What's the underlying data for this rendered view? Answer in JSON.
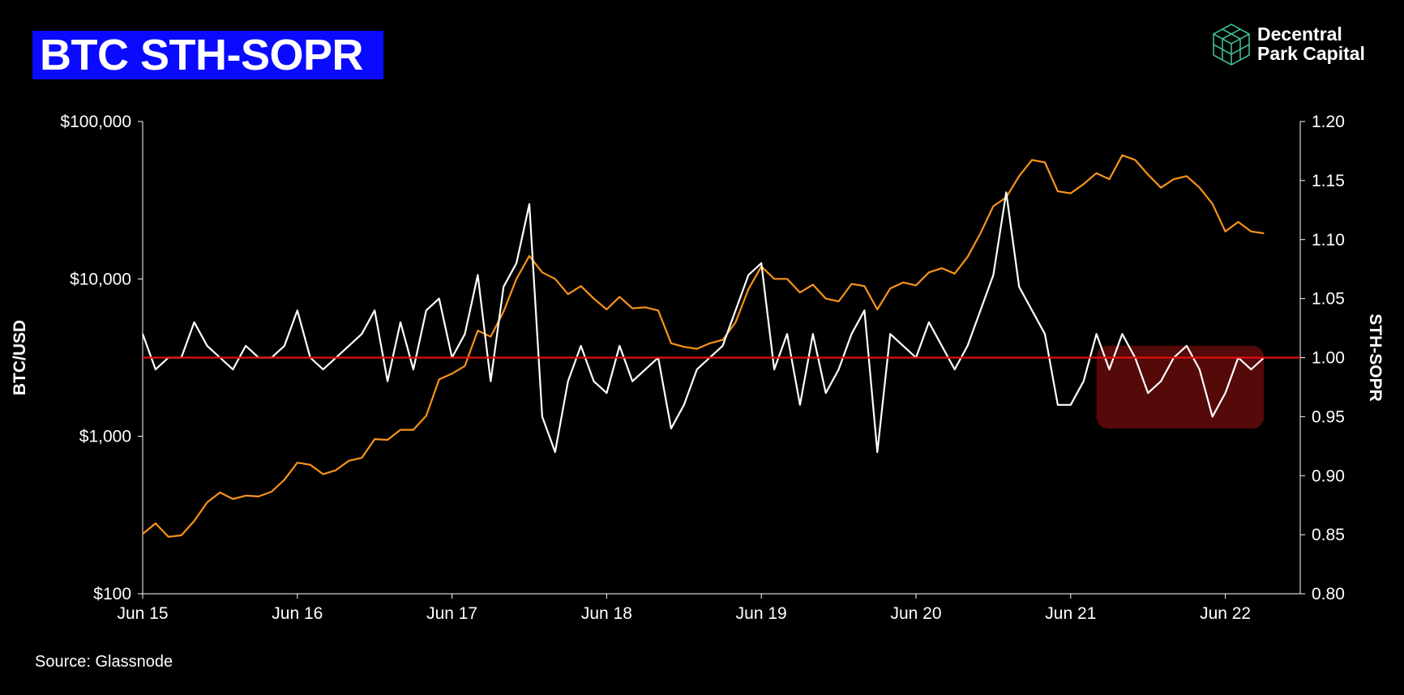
{
  "header": {
    "title": "BTC STH-SOPR",
    "logo_line1": "Decentral",
    "logo_line2": "Park Capital"
  },
  "footer": {
    "source": "Source: Glassnode"
  },
  "colors": {
    "title_bg": "#0a0aff",
    "btc_price": "#f7931a",
    "sopr": "#ffffff",
    "baseline": "#e01010",
    "highlight": "#5a0a0a",
    "logo": "#3fbf8f"
  },
  "chart_data": {
    "type": "line",
    "title": "BTC STH-SOPR",
    "x_tick_labels": [
      "Jun 15",
      "Jun 16",
      "Jun 17",
      "Jun 18",
      "Jun 19",
      "Jun 20",
      "Jun 21",
      "Jun 22"
    ],
    "x_range": [
      "2015-06",
      "2022-09"
    ],
    "left_axis": {
      "label": "BTC/USD",
      "scale": "log",
      "range": [
        100,
        100000
      ],
      "tick_labels": [
        "$100,000",
        "$10,000",
        "$1,000",
        "$100"
      ],
      "tick_values": [
        100000,
        10000,
        1000,
        100
      ]
    },
    "right_axis": {
      "label": "STH-SOPR",
      "scale": "linear",
      "range": [
        0.8,
        1.2
      ],
      "tick_labels": [
        "1.20",
        "1.15",
        "1.10",
        "1.05",
        "1.00",
        "0.95",
        "0.90",
        "0.85",
        "0.80"
      ],
      "tick_values": [
        1.2,
        1.15,
        1.1,
        1.05,
        1.0,
        0.95,
        0.9,
        0.85,
        0.8
      ]
    },
    "reference_line": {
      "axis": "right",
      "value": 1.0
    },
    "highlight_region": {
      "x_start": "2021-08",
      "x_end": "2022-09",
      "y_from": 0.94,
      "y_to": 1.01
    },
    "series": [
      {
        "name": "BTC price",
        "axis": "left",
        "x": [
          "2015-06",
          "2015-07",
          "2015-08",
          "2015-09",
          "2015-10",
          "2015-11",
          "2015-12",
          "2016-01",
          "2016-02",
          "2016-03",
          "2016-04",
          "2016-05",
          "2016-06",
          "2016-07",
          "2016-08",
          "2016-09",
          "2016-10",
          "2016-11",
          "2016-12",
          "2017-01",
          "2017-02",
          "2017-03",
          "2017-04",
          "2017-05",
          "2017-06",
          "2017-07",
          "2017-08",
          "2017-09",
          "2017-10",
          "2017-11",
          "2017-12",
          "2018-01",
          "2018-02",
          "2018-03",
          "2018-04",
          "2018-05",
          "2018-06",
          "2018-07",
          "2018-08",
          "2018-09",
          "2018-10",
          "2018-11",
          "2018-12",
          "2019-01",
          "2019-02",
          "2019-03",
          "2019-04",
          "2019-05",
          "2019-06",
          "2019-07",
          "2019-08",
          "2019-09",
          "2019-10",
          "2019-11",
          "2019-12",
          "2020-01",
          "2020-02",
          "2020-03",
          "2020-04",
          "2020-05",
          "2020-06",
          "2020-07",
          "2020-08",
          "2020-09",
          "2020-10",
          "2020-11",
          "2020-12",
          "2021-01",
          "2021-02",
          "2021-03",
          "2021-04",
          "2021-05",
          "2021-06",
          "2021-07",
          "2021-08",
          "2021-09",
          "2021-10",
          "2021-11",
          "2021-12",
          "2022-01",
          "2022-02",
          "2022-03",
          "2022-04",
          "2022-05",
          "2022-06",
          "2022-07",
          "2022-08",
          "2022-09"
        ],
        "values": [
          240,
          280,
          230,
          235,
          290,
          380,
          440,
          400,
          420,
          415,
          445,
          530,
          680,
          660,
          575,
          610,
          700,
          730,
          960,
          950,
          1100,
          1100,
          1350,
          2300,
          2500,
          2800,
          4700,
          4300,
          6200,
          10000,
          14000,
          11000,
          10000,
          8000,
          9000,
          7500,
          6400,
          7700,
          6500,
          6600,
          6300,
          3900,
          3700,
          3600,
          3900,
          4100,
          5300,
          8600,
          12000,
          10000,
          10000,
          8200,
          9200,
          7500,
          7200,
          9300,
          9000,
          6400,
          8700,
          9500,
          9100,
          11000,
          11700,
          10800,
          13800,
          19500,
          29000,
          33000,
          45000,
          57000,
          55000,
          36000,
          35000,
          40000,
          47000,
          43000,
          61000,
          57000,
          46000,
          38000,
          43000,
          45000,
          38000,
          30000,
          20000,
          23000,
          20000,
          19500
        ]
      },
      {
        "name": "STH-SOPR",
        "axis": "right",
        "x": [
          "2015-06",
          "2015-07",
          "2015-08",
          "2015-09",
          "2015-10",
          "2015-11",
          "2015-12",
          "2016-01",
          "2016-02",
          "2016-03",
          "2016-04",
          "2016-05",
          "2016-06",
          "2016-07",
          "2016-08",
          "2016-09",
          "2016-10",
          "2016-11",
          "2016-12",
          "2017-01",
          "2017-02",
          "2017-03",
          "2017-04",
          "2017-05",
          "2017-06",
          "2017-07",
          "2017-08",
          "2017-09",
          "2017-10",
          "2017-11",
          "2017-12",
          "2018-01",
          "2018-02",
          "2018-03",
          "2018-04",
          "2018-05",
          "2018-06",
          "2018-07",
          "2018-08",
          "2018-09",
          "2018-10",
          "2018-11",
          "2018-12",
          "2019-01",
          "2019-02",
          "2019-03",
          "2019-04",
          "2019-05",
          "2019-06",
          "2019-07",
          "2019-08",
          "2019-09",
          "2019-10",
          "2019-11",
          "2019-12",
          "2020-01",
          "2020-02",
          "2020-03",
          "2020-04",
          "2020-05",
          "2020-06",
          "2020-07",
          "2020-08",
          "2020-09",
          "2020-10",
          "2020-11",
          "2020-12",
          "2021-01",
          "2021-02",
          "2021-03",
          "2021-04",
          "2021-05",
          "2021-06",
          "2021-07",
          "2021-08",
          "2021-09",
          "2021-10",
          "2021-11",
          "2021-12",
          "2022-01",
          "2022-02",
          "2022-03",
          "2022-04",
          "2022-05",
          "2022-06",
          "2022-07",
          "2022-08",
          "2022-09"
        ],
        "values": [
          1.02,
          0.99,
          1.0,
          1.0,
          1.03,
          1.01,
          1.0,
          0.99,
          1.01,
          1.0,
          1.0,
          1.01,
          1.04,
          1.0,
          0.99,
          1.0,
          1.01,
          1.02,
          1.04,
          0.98,
          1.03,
          0.99,
          1.04,
          1.05,
          1.0,
          1.02,
          1.07,
          0.98,
          1.06,
          1.08,
          1.13,
          0.95,
          0.92,
          0.98,
          1.01,
          0.98,
          0.97,
          1.01,
          0.98,
          0.99,
          1.0,
          0.94,
          0.96,
          0.99,
          1.0,
          1.01,
          1.04,
          1.07,
          1.08,
          0.99,
          1.02,
          0.96,
          1.02,
          0.97,
          0.99,
          1.02,
          1.04,
          0.92,
          1.02,
          1.01,
          1.0,
          1.03,
          1.01,
          0.99,
          1.01,
          1.04,
          1.07,
          1.14,
          1.06,
          1.04,
          1.02,
          0.96,
          0.96,
          0.98,
          1.02,
          0.99,
          1.02,
          1.0,
          0.97,
          0.98,
          1.0,
          1.01,
          0.99,
          0.95,
          0.97,
          1.0,
          0.99,
          1.0
        ]
      }
    ]
  }
}
